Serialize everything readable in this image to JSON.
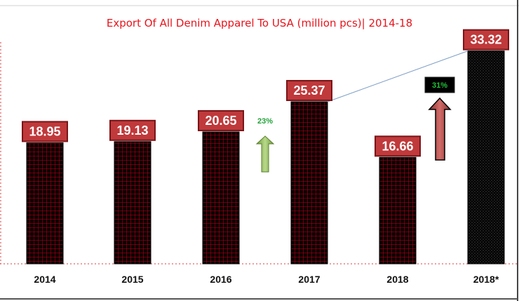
{
  "chart_data": {
    "type": "bar",
    "title": "Export Of All Denim Apparel To USA (million pcs)| 2014-18",
    "xlabel": "",
    "ylabel": "",
    "ylim": [
      0,
      35
    ],
    "grid": false,
    "legend": "none",
    "categories": [
      "2014",
      "2015",
      "2016",
      "2017",
      "2018",
      "2018*"
    ],
    "values": [
      18.95,
      19.13,
      20.65,
      25.37,
      16.66,
      33.32
    ],
    "value_labels": [
      "18.95",
      "19.13",
      "20.65",
      "25.37",
      "16.66",
      "33.32"
    ],
    "annotations": [
      {
        "text": "23%",
        "arrow": "up",
        "color": "#23a23a",
        "between": [
          "2016",
          "2017"
        ]
      },
      {
        "text": "31%",
        "arrow": "up",
        "color": "#22c23a",
        "between": [
          "2018",
          "2018*"
        ]
      }
    ],
    "trend_line": {
      "from": "2017",
      "to": "2018*"
    }
  },
  "colors": {
    "title": "#e8141c",
    "bar_fill": "#0b0000",
    "bar_grid": "#c0001c",
    "last_bar_pattern": "#6a6a6a",
    "label_box_fill": "#c0393b",
    "label_box_border": "#7a1518",
    "axis_dash": "#e23b3b",
    "green_arrow": "#8dbb55",
    "red_arrow": "#b94a48",
    "trend_line": "#7f9fc8"
  }
}
